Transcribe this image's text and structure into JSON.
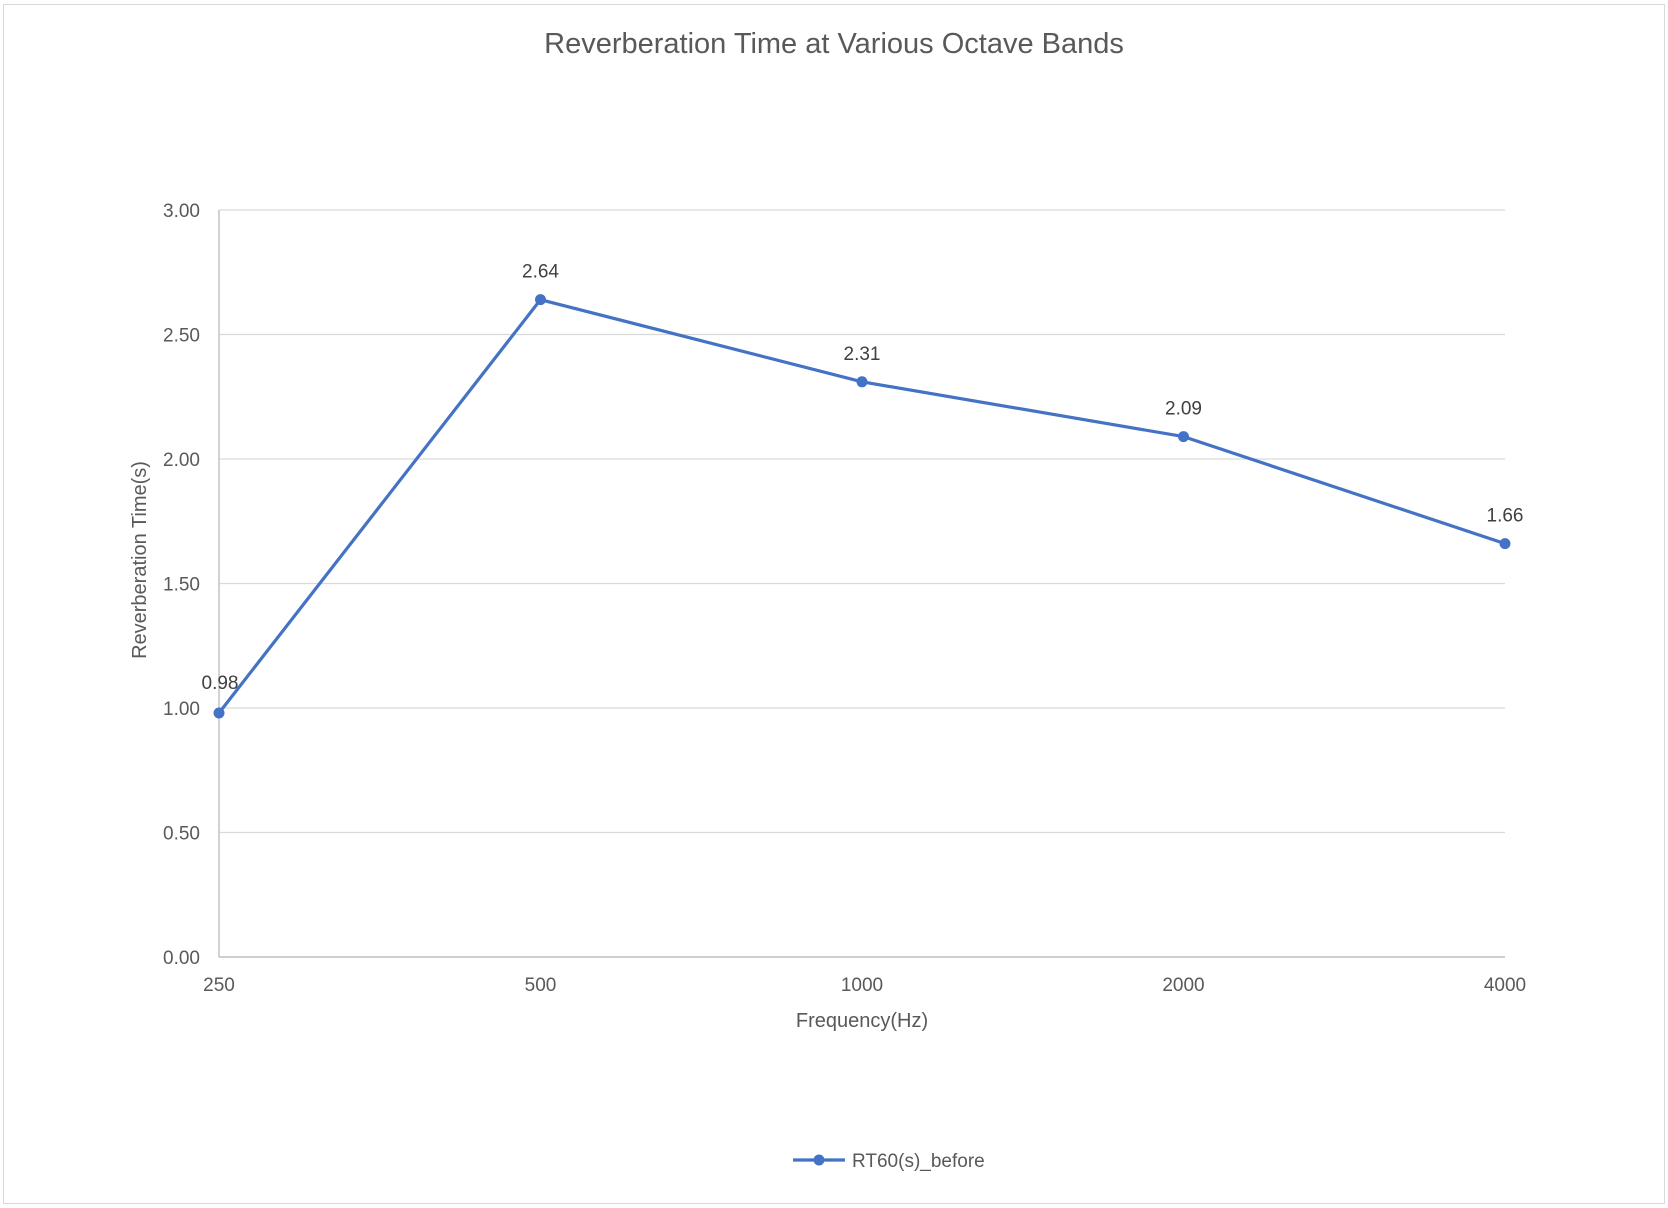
{
  "chart_data": {
    "type": "line",
    "title": "Reverberation Time at Various Octave Bands",
    "xlabel": "Frequency(Hz)",
    "ylabel": "Reverberation Time(s)",
    "categories": [
      "250",
      "500",
      "1000",
      "2000",
      "4000"
    ],
    "y_ticks": [
      "0.00",
      "0.50",
      "1.00",
      "1.50",
      "2.00",
      "2.50",
      "3.00"
    ],
    "ylim": [
      0,
      3
    ],
    "grid": true,
    "legend_position": "bottom",
    "series": [
      {
        "name": "RT60(s)_before",
        "values": [
          0.98,
          2.64,
          2.31,
          2.09,
          1.66
        ],
        "labels": [
          "0.98",
          "2.64",
          "2.31",
          "2.09",
          "1.66"
        ],
        "color": "#4472C4"
      }
    ]
  }
}
